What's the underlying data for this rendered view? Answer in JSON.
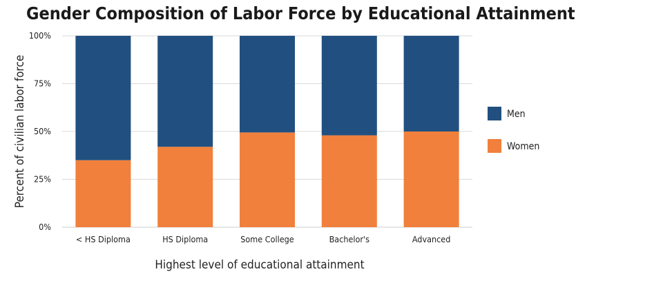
{
  "chart_data": {
    "type": "bar",
    "stacked": true,
    "title": "Gender Composition of Labor Force by Educational Attainment",
    "xlabel": "Highest level of educational attainment",
    "ylabel": "Percent of civilian labor force",
    "ylim": [
      0,
      100
    ],
    "yticks": [
      "0%",
      "25%",
      "50%",
      "75%",
      "100%"
    ],
    "categories": [
      "< HS Diploma",
      "HS Diploma",
      "Some College",
      "Bachelor's",
      "Advanced"
    ],
    "series": [
      {
        "name": "Women",
        "values": [
          35,
          42,
          49.5,
          48,
          50
        ],
        "color": "#f0803c"
      },
      {
        "name": "Men",
        "values": [
          65,
          58,
          50.5,
          52,
          50
        ],
        "color": "#215080"
      }
    ],
    "legend": {
      "placement": "right",
      "order": [
        "Men",
        "Women"
      ]
    },
    "grid": true
  }
}
